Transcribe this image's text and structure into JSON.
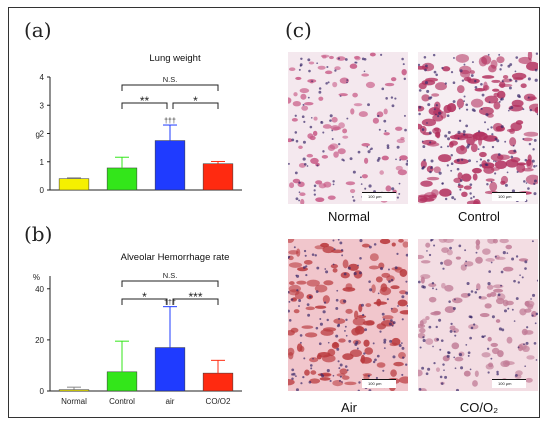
{
  "panels": {
    "a": {
      "letter": "(a)",
      "title": "Lung weight",
      "ylabel": "g"
    },
    "b": {
      "letter": "(b)",
      "title": "Alveolar Hemorrhage rate",
      "ylabel": "%"
    },
    "c": {
      "letter": "(c)"
    }
  },
  "chart_data": [
    {
      "type": "bar",
      "title": "Lung weight",
      "ylabel": "g",
      "ylim": [
        0,
        4
      ],
      "yticks": [
        0,
        1,
        2,
        3,
        4
      ],
      "categories": [
        "Normal",
        "Control",
        "Air",
        "CO/O2"
      ],
      "values": [
        0.4,
        0.78,
        1.75,
        0.93
      ],
      "errors": [
        0.03,
        0.38,
        0.55,
        0.08
      ],
      "colors": [
        "#f5f000",
        "#33e61a",
        "#1f3bff",
        "#ff2a10"
      ],
      "markers": [
        "",
        "",
        "†††",
        ""
      ],
      "significance": [
        {
          "from": 1,
          "to": 2,
          "label": "**"
        },
        {
          "from": 2,
          "to": 3,
          "label": "*"
        },
        {
          "from": 1,
          "to": 3,
          "label": "N.S."
        }
      ]
    },
    {
      "type": "bar",
      "title": "Alveolar Hemorrhage rate",
      "ylabel": "%",
      "ylim": [
        0,
        45
      ],
      "yticks": [
        0,
        20,
        40
      ],
      "categories": [
        "Normal",
        "Control",
        "air",
        "CO/O2"
      ],
      "values": [
        0.5,
        7.5,
        17,
        7
      ],
      "errors": [
        1,
        12,
        16,
        5
      ],
      "colors": [
        "#f5f000",
        "#33e61a",
        "#1f3bff",
        "#ff2a10"
      ],
      "markers": [
        "",
        "",
        "†††",
        ""
      ],
      "significance": [
        {
          "from": 1,
          "to": 2,
          "label": "*"
        },
        {
          "from": 2,
          "to": 3,
          "label": "***"
        },
        {
          "from": 1,
          "to": 3,
          "label": "N.S."
        }
      ]
    }
  ],
  "micrographs": [
    {
      "label": "Normal",
      "scale": "100 μm",
      "bg": "#f4e8ee",
      "tissue": "#c85a86",
      "density": 0.35
    },
    {
      "label": "Control",
      "scale": "100 μm",
      "bg": "#f6eef2",
      "tissue": "#b2305e",
      "density": 0.72
    },
    {
      "label": "Air",
      "scale": "100 μm",
      "bg": "#f1c6cc",
      "tissue": "#b93a3e",
      "density": 0.6
    },
    {
      "label": "CO/O₂",
      "scale": "100 μm",
      "bg": "#f3dde3",
      "tissue": "#c07a95",
      "density": 0.42
    }
  ]
}
